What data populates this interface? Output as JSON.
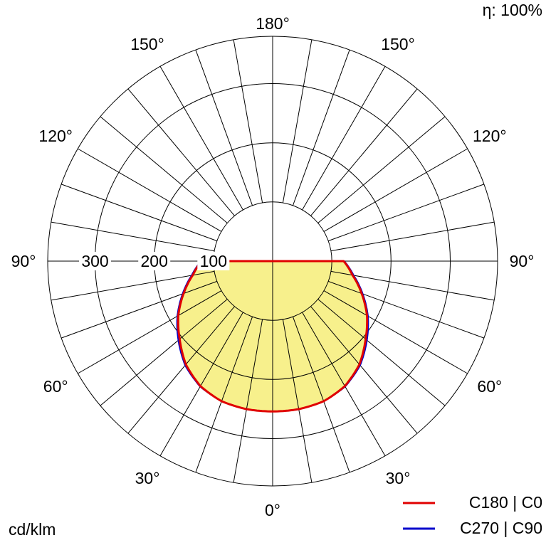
{
  "chart_data": {
    "type": "polar",
    "efficiency_label": "η: 100%",
    "unit_label": "cd/klm",
    "radial_ticks": [
      "100",
      "200",
      "300"
    ],
    "radial_values": [
      100,
      200,
      300
    ],
    "rmax": 380,
    "grid_ring_values": [
      100,
      200,
      300,
      380
    ],
    "angle_step": 10,
    "angle_labels": [
      {
        "text": "180°",
        "angle": 180,
        "side": "center"
      },
      {
        "text": "150°",
        "angle": 150,
        "side": "left"
      },
      {
        "text": "150°",
        "angle": 150,
        "side": "right"
      },
      {
        "text": "120°",
        "angle": 120,
        "side": "left"
      },
      {
        "text": "120°",
        "angle": 120,
        "side": "right"
      },
      {
        "text": "90°",
        "angle": 90,
        "side": "left"
      },
      {
        "text": "90°",
        "angle": 90,
        "side": "right"
      },
      {
        "text": "60°",
        "angle": 60,
        "side": "left"
      },
      {
        "text": "60°",
        "angle": 60,
        "side": "right"
      },
      {
        "text": "30°",
        "angle": 30,
        "side": "left"
      },
      {
        "text": "30°",
        "angle": 30,
        "side": "right"
      },
      {
        "text": "0°",
        "angle": 0,
        "side": "center"
      }
    ],
    "series": [
      {
        "name": "C180 | C0",
        "color": "#e00000",
        "angles": [
          0,
          10,
          20,
          30,
          40,
          50,
          60,
          70,
          80,
          90
        ],
        "values": [
          254,
          254,
          252,
          244,
          228,
          205,
          184,
          160,
          137,
          120
        ]
      },
      {
        "name": "C270 | C90",
        "color": "#0000cc",
        "angles": [
          0,
          10,
          20,
          30,
          40,
          50,
          60,
          70,
          80,
          90
        ],
        "values": [
          254,
          254,
          252,
          245,
          230,
          208,
          186,
          162,
          139,
          121
        ]
      }
    ],
    "fill_color": "#f7f08c",
    "grid_color": "#000000"
  }
}
